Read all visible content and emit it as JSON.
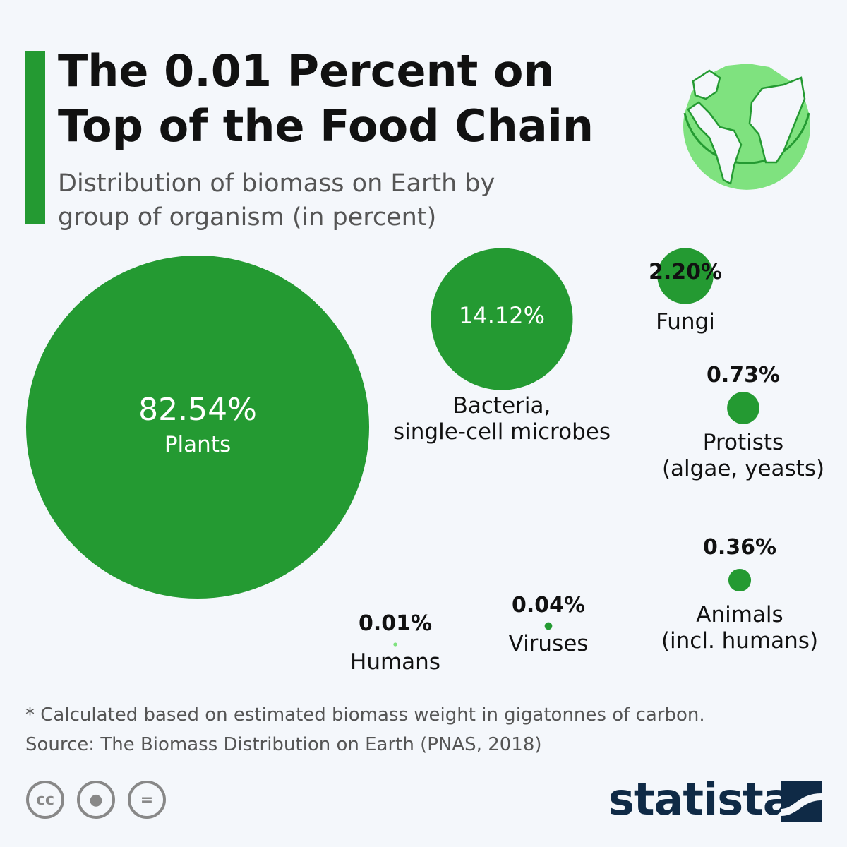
{
  "header": {
    "title": "The 0.01 Percent on Top of the Food Chain",
    "subtitle": "Distribution of biomass on Earth by group of organism (in percent)"
  },
  "chart_data": {
    "type": "bubble",
    "title": "The 0.01 Percent on Top of the Food Chain",
    "subtitle": "Distribution of biomass on Earth by group of organism (in percent)",
    "unit": "%",
    "categories": [
      "Plants",
      "Bacteria, single-cell microbes",
      "Fungi",
      "Protists (algae, yeasts)",
      "Animals (incl. humans)",
      "Viruses",
      "Humans"
    ],
    "values": [
      82.54,
      14.12,
      2.2,
      0.73,
      0.36,
      0.04,
      0.01
    ],
    "labels": [
      "82.54%",
      "14.12%",
      "2.20%",
      "0.73%",
      "0.36%",
      "0.04%",
      "0.01%"
    ],
    "name_lines": [
      [
        "Plants"
      ],
      [
        "Bacteria,",
        "single-cell microbes"
      ],
      [
        "Fungi"
      ],
      [
        "Protists",
        "(algae, yeasts)"
      ],
      [
        "Animals",
        "(incl. humans)"
      ],
      [
        "Viruses"
      ],
      [
        "Humans"
      ]
    ],
    "colors": [
      "#249a32",
      "#249a32",
      "#249a32",
      "#249a32",
      "#249a32",
      "#249a32",
      "#7fe27f"
    ]
  },
  "footer": {
    "note": "* Calculated based on estimated biomass weight in gigatonnes of carbon.",
    "source": "Source: The Biomass Distribution on Earth (PNAS, 2018)",
    "license_icons": [
      "cc-icon",
      "attribution-icon",
      "no-derivatives-icon"
    ],
    "cc_text": "cc",
    "brand": "statista"
  }
}
